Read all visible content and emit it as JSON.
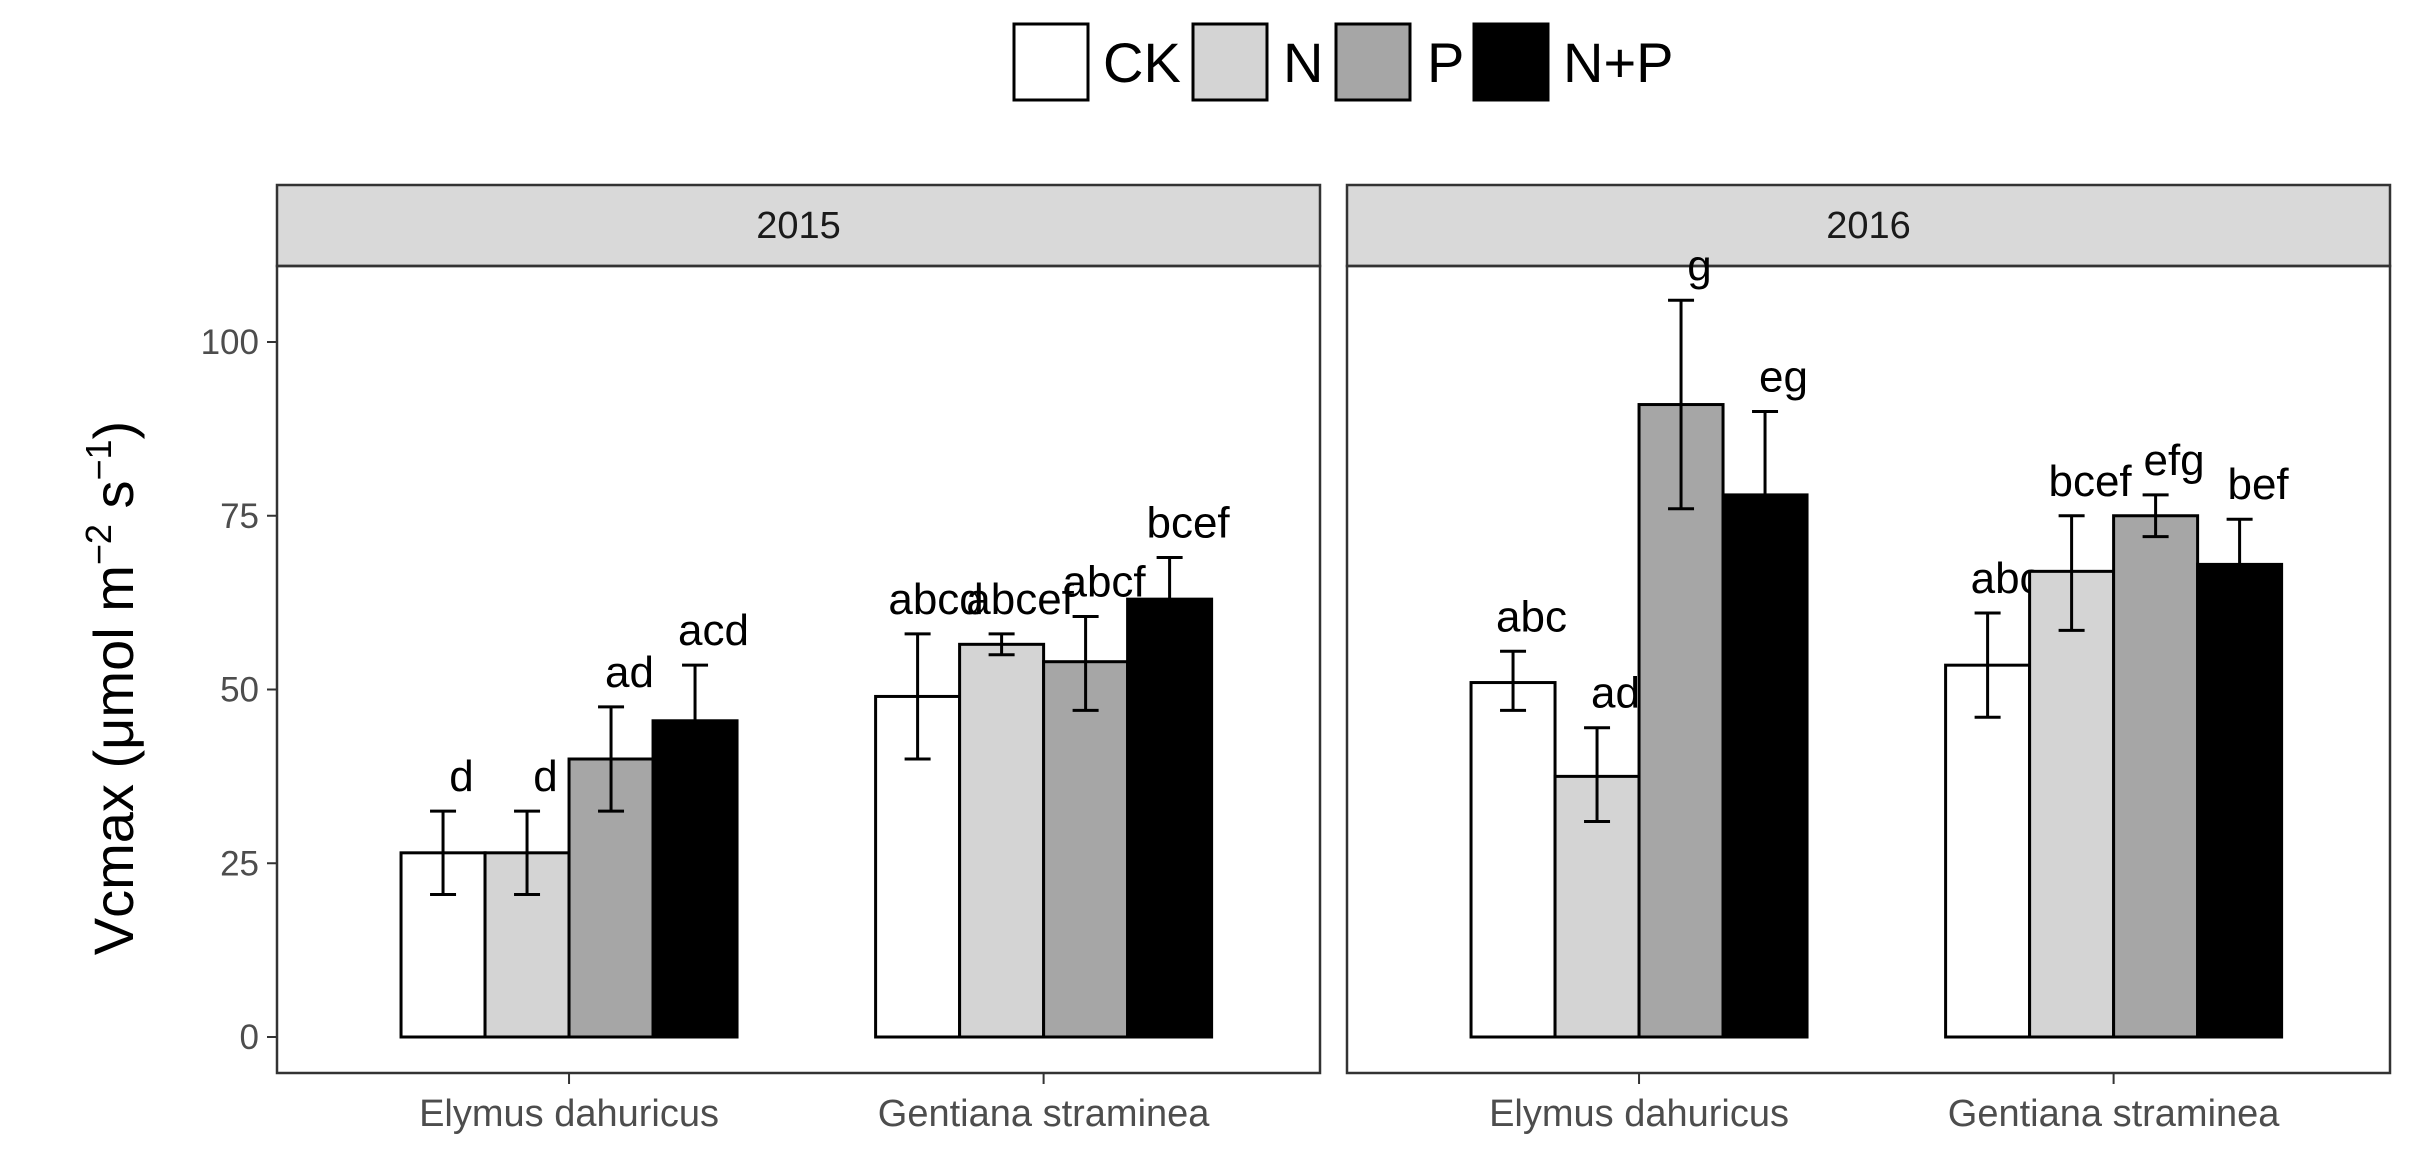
{
  "chart_data": {
    "type": "bar",
    "ylabel": {
      "base": "Vcmax (μmol m",
      "exp1": "−2",
      "mid": " s",
      "exp2": "−1",
      "end": ")"
    },
    "ylim": [
      0,
      115
    ],
    "yticks": [
      0,
      25,
      50,
      75,
      100
    ],
    "grid": false,
    "legend_position": "top",
    "series": [
      {
        "name": "CK",
        "color": "#ffffff"
      },
      {
        "name": "N",
        "color": "#d4d4d4"
      },
      {
        "name": "P",
        "color": "#a6a6a6"
      },
      {
        "name": "N+P",
        "color": "#000000"
      }
    ],
    "categories": [
      "Elymus dahuricus",
      "Gentiana straminea"
    ],
    "panels": [
      {
        "title": "2015",
        "groups": [
          {
            "category": "Elymus dahuricus",
            "bars": [
              {
                "value": 26.5,
                "err_low": 20.5,
                "err_high": 32.5,
                "letter": "d"
              },
              {
                "value": 26.5,
                "err_low": 20.5,
                "err_high": 32.5,
                "letter": "d"
              },
              {
                "value": 40,
                "err_low": 32.5,
                "err_high": 47.5,
                "letter": "ad"
              },
              {
                "value": 45.5,
                "err_low": 37.5,
                "err_high": 53.5,
                "letter": "acd"
              }
            ]
          },
          {
            "category": "Gentiana straminea",
            "bars": [
              {
                "value": 49,
                "err_low": 40,
                "err_high": 58,
                "letter": "abcd"
              },
              {
                "value": 56.5,
                "err_low": 55,
                "err_high": 58,
                "letter": "abcef"
              },
              {
                "value": 54,
                "err_low": 47,
                "err_high": 60.5,
                "letter": "abcf"
              },
              {
                "value": 63,
                "err_low": 57,
                "err_high": 69,
                "letter": "bcef"
              }
            ]
          }
        ]
      },
      {
        "title": "2016",
        "groups": [
          {
            "category": "Elymus dahuricus",
            "bars": [
              {
                "value": 51,
                "err_low": 47,
                "err_high": 55.5,
                "letter": "abc"
              },
              {
                "value": 37.5,
                "err_low": 31,
                "err_high": 44.5,
                "letter": "ad"
              },
              {
                "value": 91,
                "err_low": 76,
                "err_high": 106,
                "letter": "g"
              },
              {
                "value": 78,
                "err_low": 66,
                "err_high": 90,
                "letter": "eg"
              }
            ]
          },
          {
            "category": "Gentiana straminea",
            "bars": [
              {
                "value": 53.5,
                "err_low": 46,
                "err_high": 61,
                "letter": "abc"
              },
              {
                "value": 67,
                "err_low": 58.5,
                "err_high": 75,
                "letter": "bcef"
              },
              {
                "value": 75,
                "err_low": 72,
                "err_high": 78,
                "letter": "efg"
              },
              {
                "value": 68,
                "err_low": 62,
                "err_high": 74.5,
                "letter": "bef"
              }
            ]
          }
        ]
      }
    ]
  }
}
